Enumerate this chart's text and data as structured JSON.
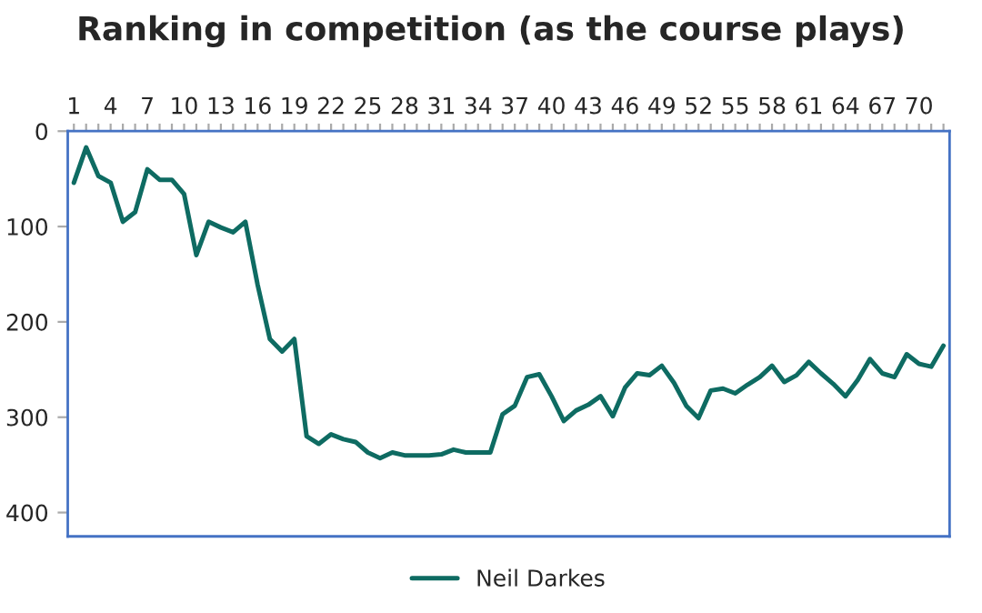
{
  "chart_data": {
    "type": "line",
    "title": "Ranking in competition (as the course plays)",
    "categories": [
      "1",
      null,
      null,
      "4",
      null,
      null,
      "7",
      null,
      null,
      "10",
      null,
      null,
      "13",
      null,
      null,
      "16",
      null,
      null,
      "19",
      null,
      null,
      "22",
      null,
      null,
      "25",
      null,
      null,
      "28",
      null,
      null,
      "31",
      null,
      null,
      "34",
      null,
      null,
      "37",
      null,
      null,
      "40",
      null,
      null,
      "43",
      null,
      null,
      "46",
      null,
      null,
      "49",
      null,
      null,
      "52",
      null,
      null,
      "55",
      null,
      null,
      "58",
      null,
      null,
      "61",
      null,
      null,
      "64",
      null,
      null,
      "67",
      null,
      null,
      "70",
      null,
      null
    ],
    "series": [
      {
        "name": "Neil Darkes",
        "color": "#0e6b62",
        "values": [
          54,
          17,
          47,
          54,
          95,
          85,
          40,
          51,
          51,
          66,
          130,
          95,
          101,
          106,
          95,
          161,
          218,
          231,
          218,
          320,
          328,
          318,
          323,
          326,
          337,
          343,
          337,
          340,
          340,
          340,
          339,
          334,
          337,
          337,
          337,
          297,
          288,
          258,
          255,
          278,
          304,
          293,
          287,
          278,
          299,
          269,
          254,
          256,
          246,
          264,
          288,
          301,
          272,
          270,
          275,
          266,
          258,
          246,
          263,
          256,
          242,
          254,
          265,
          278,
          261,
          239,
          254,
          258,
          234,
          244,
          247,
          225
        ]
      }
    ],
    "ylim": [
      425,
      0
    ],
    "yticks": [
      0,
      100,
      200,
      300,
      400
    ],
    "grid": false,
    "legend": "bottom",
    "marker": "none",
    "line_style": "solid"
  }
}
